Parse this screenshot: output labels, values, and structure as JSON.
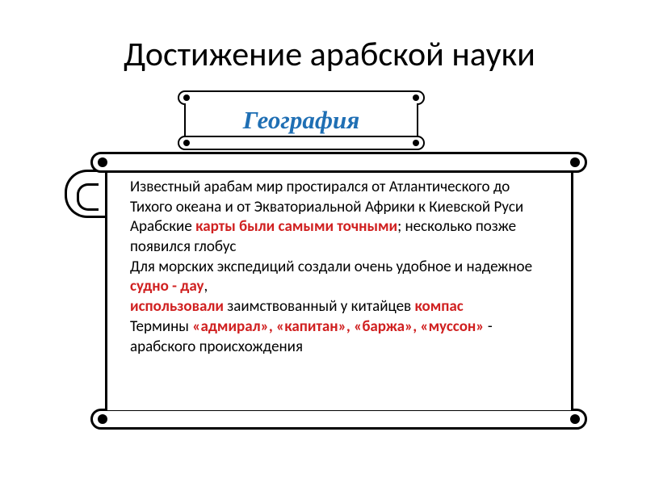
{
  "title": "Достижение арабской науки",
  "subtitle": "География",
  "colors": {
    "title": "#000000",
    "subtitle": "#1f6fb4",
    "body": "#000000",
    "highlight": "#d02020",
    "background": "#ffffff",
    "stroke": "#000000"
  },
  "fonts": {
    "title_size": 42,
    "subtitle_size": 31,
    "body_size": 19,
    "subtitle_family": "Georgia, serif",
    "subtitle_style": "italic bold"
  },
  "body": {
    "line1a": "Известный арабам мир простирался от Атлантического до Тихого океана и от Экваториальной Африки к Киевской Руси",
    "line2a": "Арабские ",
    "line2b": "карты были самыми точными",
    "line2c": "; несколько позже появился глобус",
    "line3a": " Для морских экспедиций создали очень удобное и надежное ",
    "line3b": "судно - дау",
    "line3c": ",",
    "line4a": "использовали ",
    "line4b": "заимствованный у китайцев ",
    "line4c": "компас",
    "line5a": "Термины ",
    "line5b": "«адмирал», «капитан», «баржа», «муссон» ",
    "line5c": "- арабского происхождения"
  }
}
